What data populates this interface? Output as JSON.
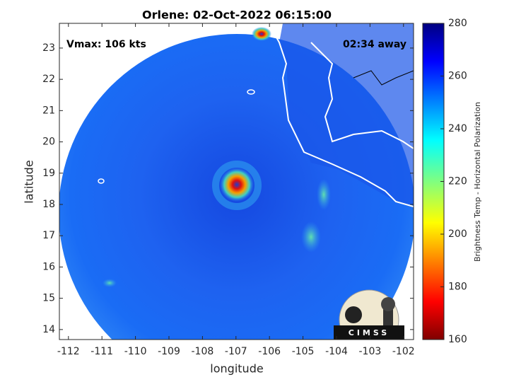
{
  "chart_data": {
    "type": "map",
    "title": "Orlene: 02-Oct-2022 06:15:00",
    "annotations": [
      "Vmax: 106 kts",
      "02:34 away"
    ],
    "xlabel": "longitude",
    "ylabel": "latitude",
    "xlim": [
      -112.27,
      -101.7
    ],
    "xticks": [
      -112,
      -111,
      -110,
      -109,
      -108,
      -107,
      -106,
      -105,
      -104,
      -103,
      -102
    ],
    "ylim": [
      13.68,
      23.79
    ],
    "yticks": [
      14,
      15,
      16,
      17,
      18,
      19,
      20,
      21,
      22,
      23
    ],
    "colorbar": {
      "label": "Brightness Temp - Horizontal Polarization",
      "lim": [
        160,
        280
      ],
      "ticks": [
        160,
        180,
        200,
        220,
        240,
        260,
        280
      ]
    },
    "logo": "CIMSS"
  }
}
